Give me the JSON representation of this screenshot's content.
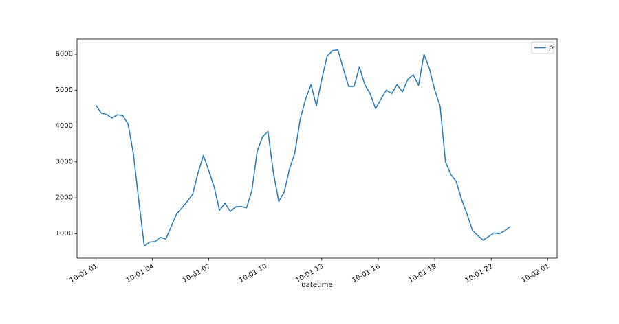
{
  "chart_data": {
    "type": "line",
    "xlabel": "datetime",
    "ylabel": "",
    "x_start": "2023-10-01T01:00",
    "x_end": "2023-10-01T23:00",
    "xlim": [
      "2023-10-01T00:00",
      "2023-10-02T01:30"
    ],
    "ylim": [
      320,
      6420
    ],
    "x_ticks": [
      {
        "at": "2023-10-01T01:00",
        "label": "10-01 01"
      },
      {
        "at": "2023-10-01T04:00",
        "label": "10-01 04"
      },
      {
        "at": "2023-10-01T07:00",
        "label": "10-01 07"
      },
      {
        "at": "2023-10-01T10:00",
        "label": "10-01 10"
      },
      {
        "at": "2023-10-01T13:00",
        "label": "10-01 13"
      },
      {
        "at": "2023-10-01T16:00",
        "label": "10-01 16"
      },
      {
        "at": "2023-10-01T19:00",
        "label": "10-01 19"
      },
      {
        "at": "2023-10-01T22:00",
        "label": "10-01 22"
      },
      {
        "at": "2023-10-02T01:00",
        "label": "10-02 01"
      }
    ],
    "y_ticks": [
      {
        "value": 1000,
        "label": "1000"
      },
      {
        "value": 2000,
        "label": "2000"
      },
      {
        "value": 3000,
        "label": "3000"
      },
      {
        "value": 4000,
        "label": "4000"
      },
      {
        "value": 5000,
        "label": "5000"
      },
      {
        "value": 6000,
        "label": "6000"
      }
    ],
    "grid": false,
    "legend_position": "top-right",
    "series": [
      {
        "name": "p",
        "color": "#1f77b4",
        "values": [
          4580,
          4360,
          4320,
          4220,
          4310,
          4290,
          4050,
          3200,
          1900,
          650,
          770,
          780,
          900,
          850,
          1200,
          1550,
          1720,
          1900,
          2100,
          2700,
          3180,
          2750,
          2300,
          1650,
          1850,
          1620,
          1750,
          1760,
          1720,
          2200,
          3300,
          3700,
          3850,
          2700,
          1900,
          2150,
          2800,
          3250,
          4200,
          4750,
          5150,
          4560,
          5300,
          5950,
          6100,
          6120,
          5600,
          5100,
          5100,
          5650,
          5150,
          4900,
          4480,
          4750,
          5000,
          4900,
          5150,
          4950,
          5300,
          5430,
          5130,
          6000,
          5600,
          5000,
          4550,
          3000,
          2650,
          2450,
          1950,
          1550,
          1100,
          950,
          820,
          920,
          1020,
          1000,
          1080,
          1200
        ]
      }
    ]
  }
}
